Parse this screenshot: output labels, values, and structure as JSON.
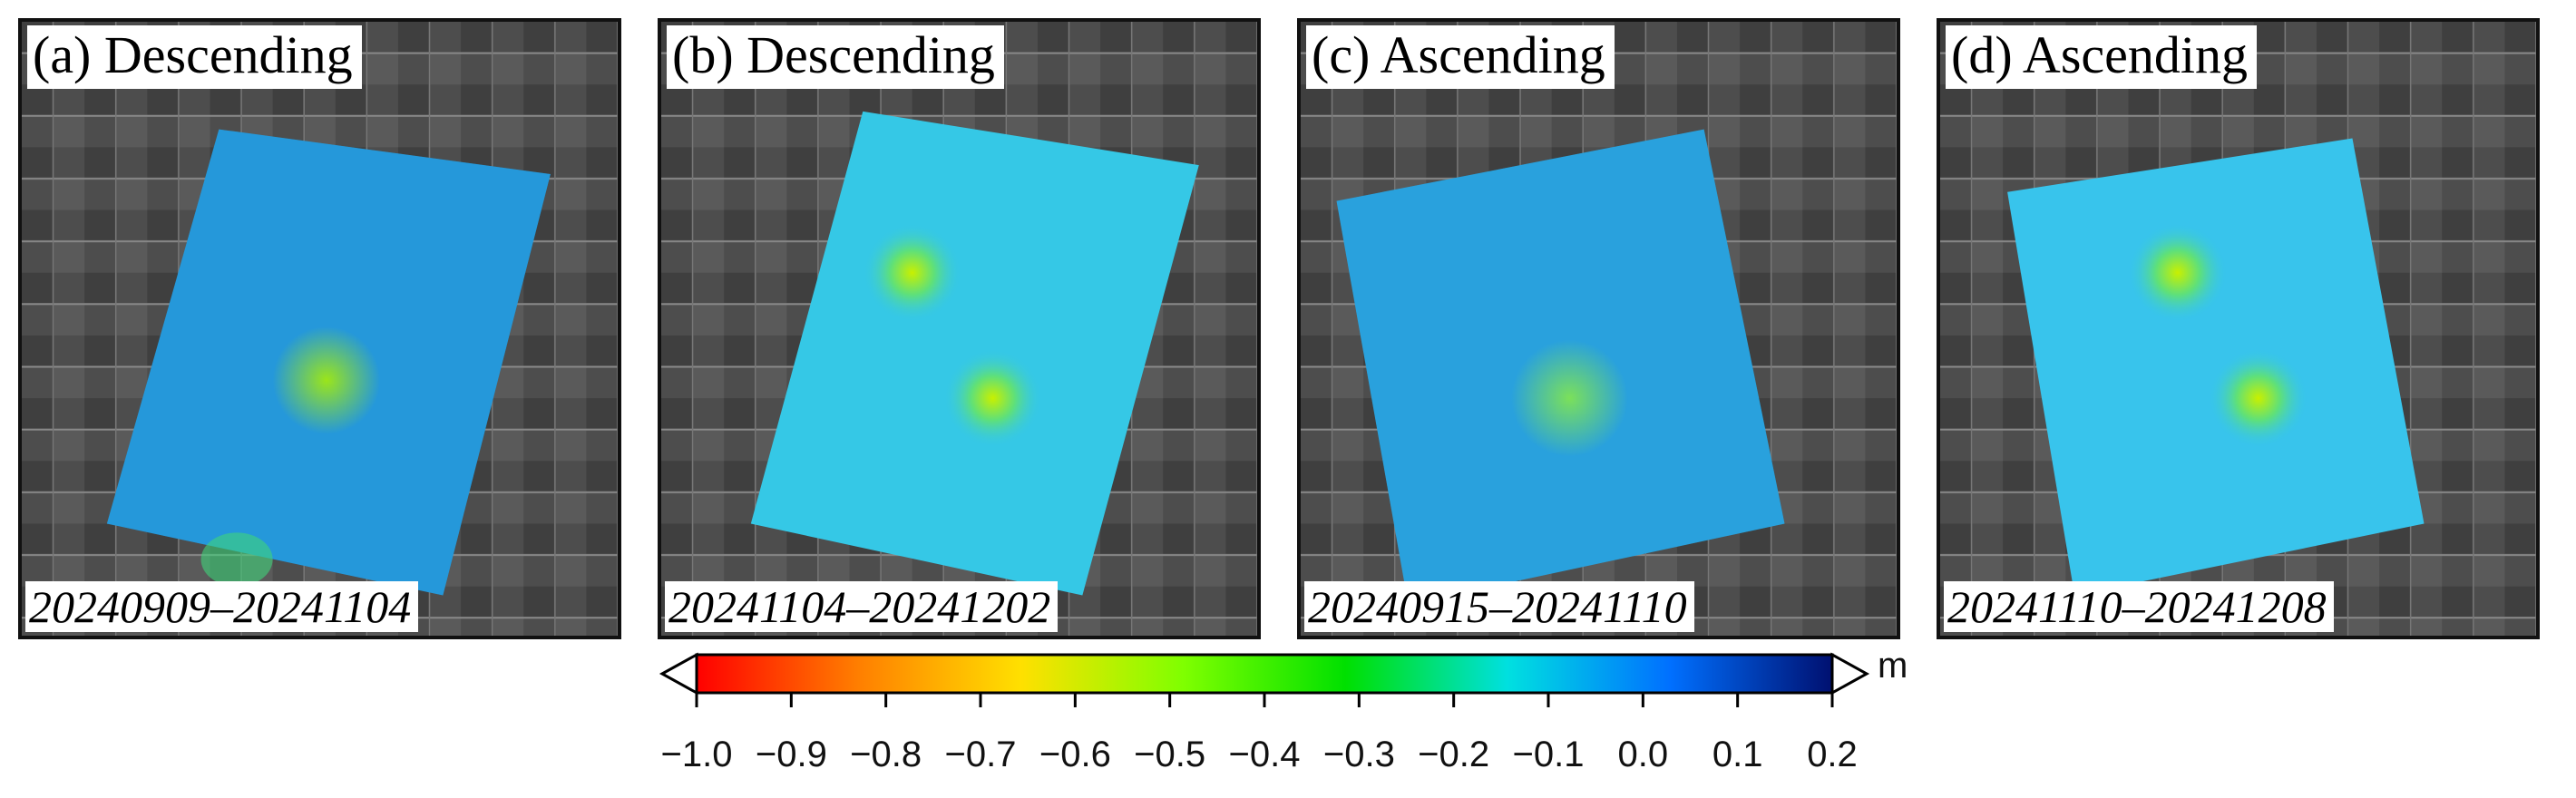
{
  "panels": [
    {
      "label": "(a) Descending",
      "dates": "20240909–20241104"
    },
    {
      "label": "(b) Descending",
      "dates": "20241104–20241202"
    },
    {
      "label": "(c) Ascending",
      "dates": "20240915–20241110"
    },
    {
      "label": "(d) Ascending",
      "dates": "20241110–20241208"
    }
  ],
  "colorbar": {
    "unit": "m",
    "ticks": [
      "−1.0",
      "−0.9",
      "−0.8",
      "−0.7",
      "−0.6",
      "−0.5",
      "−0.4",
      "−0.3",
      "−0.2",
      "−0.1",
      "0.0",
      "0.1",
      "0.2"
    ],
    "range": [
      -1.0,
      0.2
    ],
    "colors": [
      "#ff0000",
      "#ff7f00",
      "#ffe000",
      "#7fff00",
      "#00e000",
      "#00e0e0",
      "#0070ff",
      "#001070"
    ]
  }
}
